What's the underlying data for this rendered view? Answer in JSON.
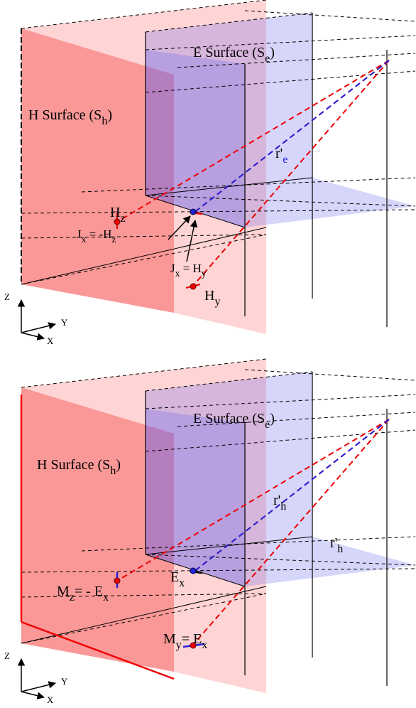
{
  "panels": [
    {
      "labels": [
        [
          "E Surface (S",
          "e",
          ")"
        ],
        [
          "H Surface (S",
          "h",
          ")"
        ],
        [
          "r'",
          "e"
        ],
        [
          "H",
          "z"
        ],
        [
          "J",
          "x",
          " = -H",
          "z"
        ],
        [
          "J",
          "x",
          " = H",
          "y"
        ],
        [
          "H",
          "y"
        ]
      ],
      "axes": {
        "z": "Z",
        "y": "Y",
        "x": "X"
      }
    },
    {
      "labels": [
        [
          "E Surface (S",
          "e",
          ")"
        ],
        [
          "H Surface (S",
          "h",
          ")"
        ],
        [
          "r'",
          "h"
        ],
        [
          "r'",
          "h"
        ],
        [
          "E",
          "x"
        ],
        [
          "M",
          "z",
          "= - E",
          "x"
        ],
        [
          "M",
          "y",
          "= E",
          "x"
        ]
      ],
      "axes": {
        "z": "Z",
        "y": "Y",
        "x": "X"
      }
    }
  ]
}
